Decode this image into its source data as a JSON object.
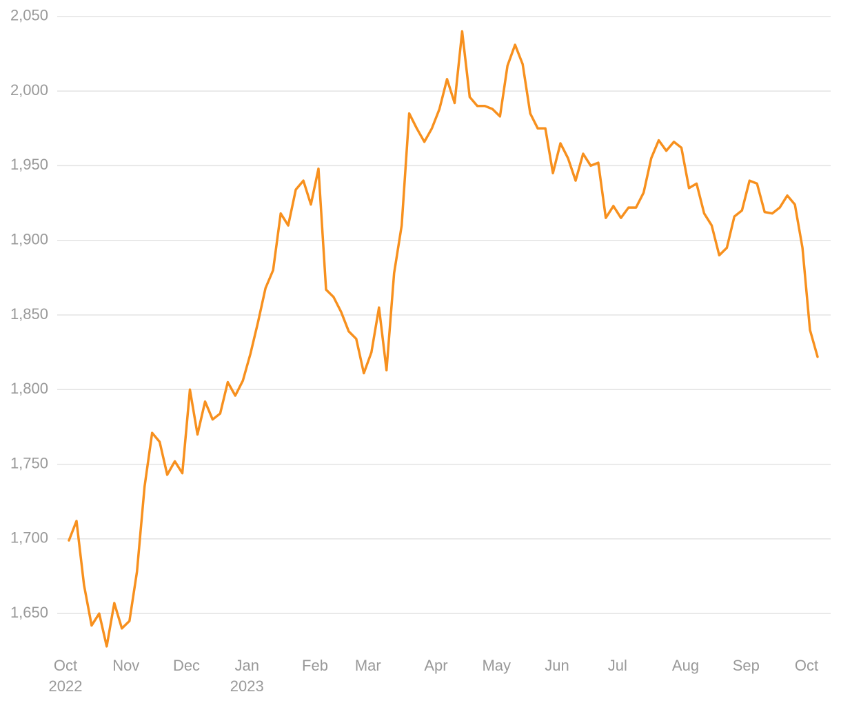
{
  "chart_data": {
    "type": "line",
    "categories": [
      "Oct\n2022",
      null,
      null,
      null,
      null,
      null,
      null,
      null,
      "Nov",
      null,
      null,
      null,
      null,
      null,
      null,
      null,
      "Dec",
      null,
      null,
      null,
      null,
      null,
      null,
      null,
      "Jan\n2023",
      null,
      null,
      null,
      null,
      null,
      null,
      null,
      null,
      "Feb",
      null,
      null,
      null,
      null,
      null,
      null,
      "Mar",
      null,
      null,
      null,
      null,
      null,
      null,
      null,
      null,
      "Apr",
      null,
      null,
      null,
      null,
      null,
      null,
      null,
      "May",
      null,
      null,
      null,
      null,
      null,
      null,
      null,
      "Jun",
      null,
      null,
      null,
      null,
      null,
      null,
      null,
      "Jul",
      null,
      null,
      null,
      null,
      null,
      null,
      null,
      null,
      "Aug",
      null,
      null,
      null,
      null,
      null,
      null,
      null,
      "Sep",
      null,
      null,
      null,
      null,
      null,
      null,
      null,
      "Oct",
      null
    ],
    "series": [
      {
        "color": "#f7901e",
        "values": [
          1699,
          1712,
          1669,
          1642,
          1650,
          1628,
          1657,
          1640,
          1645,
          1678,
          1735,
          1771,
          1765,
          1743,
          1752,
          1744,
          1800,
          1770,
          1792,
          1780,
          1784,
          1805,
          1796,
          1806,
          1824,
          1845,
          1868,
          1880,
          1918,
          1910,
          1934,
          1940,
          1924,
          1948,
          1867,
          1862,
          1852,
          1839,
          1834,
          1811,
          1825,
          1855,
          1813,
          1878,
          1910,
          1985,
          1975,
          1966,
          1975,
          1988,
          2008,
          1992,
          2040,
          1996,
          1990,
          1990,
          1988,
          1983,
          2017,
          2031,
          2018,
          1985,
          1975,
          1975,
          1945,
          1965,
          1955,
          1940,
          1958,
          1950,
          1952,
          1915,
          1923,
          1915,
          1922,
          1922,
          1932,
          1955,
          1967,
          1960,
          1966,
          1962,
          1935,
          1938,
          1918,
          1910,
          1890,
          1895,
          1916,
          1920,
          1940,
          1938,
          1919,
          1918,
          1922,
          1930,
          1924,
          1895,
          1840,
          1822
        ]
      }
    ],
    "ylim": [
      1627,
      2055
    ],
    "yticks": [
      {
        "value": 1650,
        "label": "1,650"
      },
      {
        "value": 1700,
        "label": "1,700"
      },
      {
        "value": 1750,
        "label": "1,750"
      },
      {
        "value": 1800,
        "label": "1,800"
      },
      {
        "value": 1850,
        "label": "1,850"
      },
      {
        "value": 1900,
        "label": "1,900"
      },
      {
        "value": 1950,
        "label": "1,950"
      },
      {
        "value": 2000,
        "label": "2,000"
      },
      {
        "value": 2050,
        "label": "2,050"
      }
    ],
    "grid": true
  }
}
